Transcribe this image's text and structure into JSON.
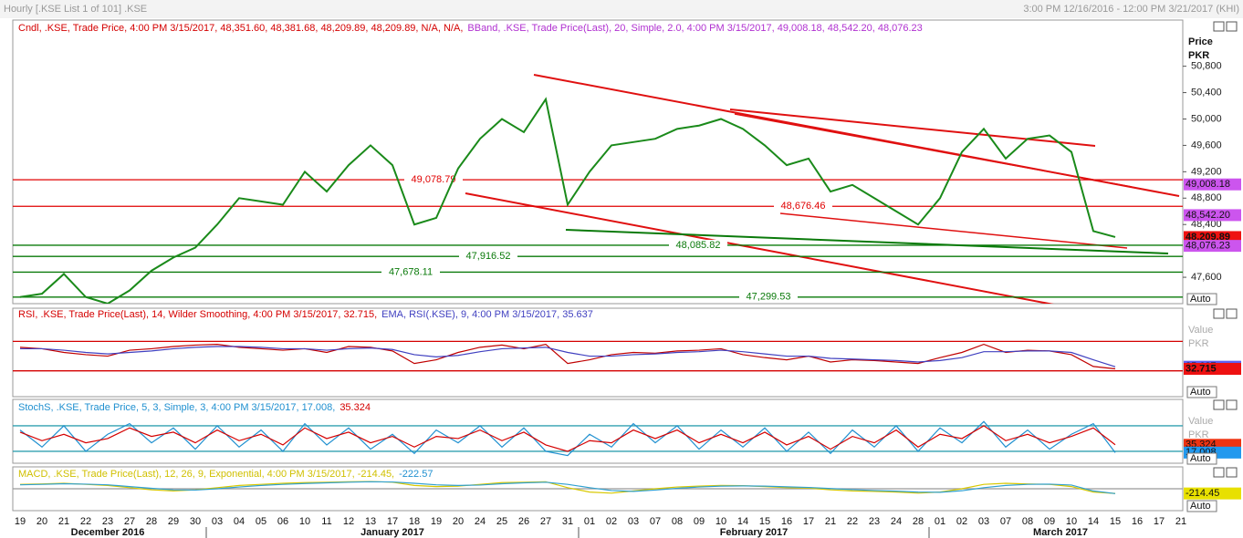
{
  "header": {
    "title": "Hourly [.KSE List 1 of 101] .KSE",
    "range": "3:00 PM 12/16/2016 - 12:00 PM 3/21/2017 (KHI)"
  },
  "x_axis": {
    "categories": [
      "19",
      "20",
      "21",
      "22",
      "23",
      "27",
      "28",
      "29",
      "30",
      "03",
      "04",
      "05",
      "06",
      "10",
      "11",
      "12",
      "13",
      "17",
      "18",
      "19",
      "20",
      "24",
      "25",
      "26",
      "27",
      "31",
      "01",
      "02",
      "03",
      "07",
      "08",
      "09",
      "10",
      "14",
      "15",
      "16",
      "17",
      "21",
      "22",
      "23",
      "24",
      "28",
      "01",
      "02",
      "03",
      "07",
      "08",
      "09",
      "10",
      "14",
      "15",
      "16",
      "17",
      "21"
    ],
    "months": [
      "December 2016",
      "January 2017",
      "February 2017",
      "March 2017"
    ]
  },
  "chart_data": [
    {
      "type": "line",
      "legend": [
        {
          "text": "Cndl, .KSE, Trade Price, 4:00 PM 3/15/2017, 48,351.60, 48,381.68, 48,209.89, 48,209.89, N/A, N/A,",
          "color": "#d40000"
        },
        {
          "text": "BBand, .KSE, Trade Price(Last), 20, Simple, 2.0, 4:00 PM 3/15/2017, 49,008.18, 48,542.20, 48,076.23",
          "color": "#b030d0"
        }
      ],
      "axis_title": [
        "Price",
        "PKR"
      ],
      "auto_button": "Auto",
      "ylim": [
        47200,
        51500
      ],
      "yticks": [
        {
          "value": 50800,
          "label": "50,800"
        },
        {
          "value": 50400,
          "label": "50,400"
        },
        {
          "value": 50000,
          "label": "50,000"
        },
        {
          "value": 49600,
          "label": "49,600"
        },
        {
          "value": 49200,
          "label": "49,200"
        },
        {
          "value": 48800,
          "label": "48,800"
        },
        {
          "value": 48400,
          "label": "48,400"
        },
        {
          "value": 47600,
          "label": "47,600"
        }
      ],
      "series": [
        {
          "name": "Close",
          "color": "#1a8a1a",
          "values": [
            47300,
            47350,
            47650,
            47300,
            47200,
            47400,
            47700,
            47900,
            48050,
            48400,
            48800,
            48750,
            48700,
            49200,
            48900,
            49300,
            49600,
            49300,
            48400,
            48500,
            49250,
            49700,
            50000,
            49800,
            50300,
            48700,
            49200,
            49600,
            49650,
            49700,
            49850,
            49900,
            50000,
            49850,
            49600,
            49300,
            49400,
            48900,
            49000,
            48800,
            48600,
            48400,
            48800,
            49500,
            49850,
            49400,
            49700,
            49750,
            49500,
            48300,
            48210,
            null,
            null,
            null
          ]
        }
      ],
      "levels": [
        {
          "value": 49078.79,
          "label": "49,078.79",
          "color": "#e00000"
        },
        {
          "value": 48676.46,
          "label": "48,676.46",
          "color": "#e00000"
        },
        {
          "value": 48085.82,
          "label": "48,085.82",
          "color": "#0a7a0a"
        },
        {
          "value": 47916.52,
          "label": "47,916.52",
          "color": "#0a7a0a"
        },
        {
          "value": 47678.11,
          "label": "47,678.11",
          "color": "#0a7a0a"
        },
        {
          "value": 47299.53,
          "label": "47,299.53",
          "color": "#0a7a0a"
        }
      ],
      "last_values": [
        {
          "value": 49008.18,
          "label": "49,008.18",
          "color": "#cc55ee"
        },
        {
          "value": 48542.2,
          "label": "48,542.20",
          "color": "#cc55ee"
        },
        {
          "value": 48209.89,
          "label": "48,209.89",
          "color": "#ee1111"
        },
        {
          "value": 48076.23,
          "label": "48,076.23",
          "color": "#cc55ee"
        }
      ]
    },
    {
      "type": "line",
      "legend": [
        {
          "text": "RSI, .KSE, Trade Price(Last), 14, Wilder Smoothing, 4:00 PM 3/15/2017, 32.715,",
          "color": "#d40000"
        },
        {
          "text": "EMA, RSI(.KSE), 9, 4:00 PM 3/15/2017, 35.637",
          "color": "#4040c0"
        }
      ],
      "axis_title": [
        "Value",
        "PKR"
      ],
      "auto_button": "Auto",
      "ylim": [
        -5,
        115
      ],
      "series": [
        {
          "name": "RSI",
          "color": "#c00000",
          "values": [
            62,
            60,
            55,
            52,
            50,
            58,
            60,
            63,
            65,
            66,
            62,
            60,
            58,
            60,
            55,
            63,
            62,
            57,
            40,
            45,
            55,
            62,
            65,
            60,
            66,
            40,
            45,
            52,
            55,
            54,
            57,
            58,
            60,
            52,
            48,
            45,
            50,
            42,
            45,
            44,
            42,
            40,
            48,
            55,
            66,
            55,
            58,
            57,
            52,
            36,
            32.715,
            null,
            null,
            null
          ]
        },
        {
          "name": "EMA",
          "color": "#4040c0",
          "values": [
            60,
            60,
            58,
            55,
            53,
            55,
            57,
            60,
            62,
            63,
            63,
            62,
            60,
            60,
            58,
            60,
            61,
            59,
            52,
            49,
            51,
            56,
            60,
            61,
            62,
            55,
            50,
            50,
            52,
            53,
            55,
            56,
            58,
            56,
            53,
            50,
            50,
            47,
            46,
            45,
            44,
            42,
            44,
            48,
            56,
            56,
            57,
            57,
            55,
            45,
            35.637,
            null,
            null,
            null
          ]
        }
      ],
      "levels": [
        {
          "value": 70,
          "color": "#d40000"
        },
        {
          "value": 30,
          "color": "#d40000"
        }
      ],
      "last_values": [
        {
          "value": 35.637,
          "label": "35.637",
          "color": "#6060f0"
        },
        {
          "value": 32.715,
          "label": "32.715",
          "color": "#ee1111"
        }
      ]
    },
    {
      "type": "line",
      "legend": [
        {
          "text": "StochS, .KSE, Trade Price, 5, 3, Simple, 3, 4:00 PM 3/15/2017, 17.008,",
          "color": "#2090d0"
        },
        {
          "text": "35.324",
          "color": "#d40000"
        }
      ],
      "axis_title": [
        "Value",
        "PKR"
      ],
      "auto_button": "Auto",
      "ylim": [
        -8,
        142
      ],
      "series": [
        {
          "name": "StochS",
          "color": "#2090d0",
          "values": [
            70,
            30,
            80,
            20,
            60,
            85,
            40,
            75,
            25,
            80,
            30,
            70,
            20,
            85,
            35,
            75,
            25,
            60,
            15,
            70,
            40,
            80,
            30,
            75,
            20,
            10,
            60,
            30,
            85,
            40,
            80,
            25,
            70,
            30,
            75,
            20,
            65,
            15,
            70,
            30,
            80,
            20,
            75,
            40,
            90,
            30,
            70,
            25,
            60,
            85,
            17.008,
            null,
            null,
            null
          ]
        },
        {
          "name": "Signal",
          "color": "#d40000",
          "values": [
            65,
            45,
            60,
            40,
            50,
            75,
            55,
            65,
            40,
            70,
            45,
            60,
            35,
            75,
            50,
            65,
            40,
            55,
            30,
            55,
            50,
            70,
            45,
            65,
            35,
            20,
            45,
            40,
            70,
            50,
            70,
            40,
            60,
            40,
            65,
            35,
            55,
            25,
            55,
            40,
            70,
            30,
            60,
            50,
            80,
            45,
            60,
            40,
            55,
            75,
            35.324,
            null,
            null,
            null
          ]
        }
      ],
      "levels": [
        {
          "value": 80,
          "color": "#30a0b0"
        },
        {
          "value": 20,
          "color": "#30a0b0"
        }
      ],
      "last_values": [
        {
          "value": 35.324,
          "label": "35.324",
          "color": "#ee3311"
        },
        {
          "value": 17.008,
          "label": "17.008",
          "color": "#2299ee"
        }
      ]
    },
    {
      "type": "line",
      "legend": [
        {
          "text": "MACD, .KSE, Trade Price(Last), 12, 26, 9, Exponential, 4:00 PM 3/15/2017, -214.45,",
          "color": "#d0c000"
        },
        {
          "text": "-222.57",
          "color": "#2090d0"
        }
      ],
      "auto_button": "Auto",
      "ylim": [
        -1000,
        1000
      ],
      "series": [
        {
          "name": "MACD",
          "color": "#d8c800",
          "values": [
            200,
            220,
            250,
            200,
            150,
            50,
            -50,
            -100,
            -50,
            50,
            150,
            200,
            250,
            280,
            300,
            320,
            330,
            300,
            150,
            100,
            120,
            200,
            280,
            300,
            320,
            50,
            -150,
            -200,
            -100,
            0,
            80,
            120,
            150,
            140,
            100,
            50,
            30,
            -50,
            -100,
            -120,
            -150,
            -200,
            -150,
            0,
            200,
            250,
            220,
            200,
            100,
            -150,
            -214.45,
            null,
            null,
            null
          ]
        },
        {
          "name": "Signal",
          "color": "#30a0d0",
          "values": [
            180,
            200,
            230,
            210,
            180,
            100,
            20,
            -50,
            -60,
            0,
            80,
            150,
            200,
            240,
            270,
            300,
            320,
            310,
            250,
            180,
            150,
            170,
            230,
            270,
            300,
            200,
            50,
            -80,
            -120,
            -60,
            20,
            80,
            120,
            130,
            120,
            90,
            60,
            10,
            -40,
            -80,
            -110,
            -150,
            -160,
            -90,
            50,
            150,
            200,
            210,
            170,
            -100,
            -222.57,
            null,
            null,
            null
          ]
        }
      ],
      "levels": [
        {
          "value": 0,
          "color": "#999999"
        }
      ],
      "last_values": [
        {
          "value": -214.45,
          "label": "-214.45",
          "color": "#e8e000"
        }
      ]
    }
  ]
}
